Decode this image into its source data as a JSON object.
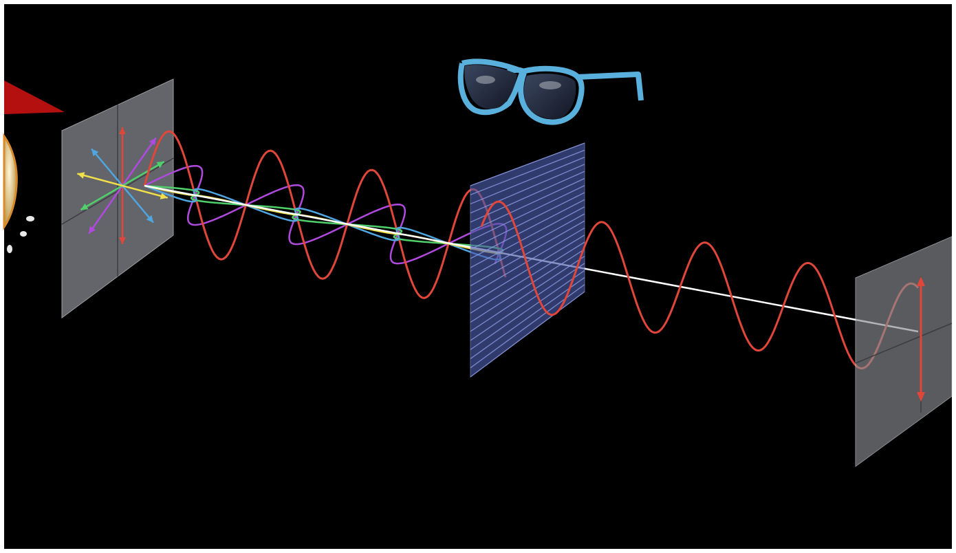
{
  "colors": {
    "background": "#000000",
    "frame": "#ffffff",
    "panel_fill": "#8a8d93",
    "panel_edge": "#d8dbe0",
    "polarizer_fill": "#4a5aa6",
    "polarizer_line": "#8a9ae0",
    "wave_red": "#e0473a",
    "wave_purple": "#b04adf",
    "wave_green": "#4fd06a",
    "wave_yellow": "#f1e04a",
    "wave_cyan": "#4fa6e0",
    "beam": "#ffffff",
    "glasses_frame": "#5ab0dc",
    "glasses_lens": "#1e2432",
    "lamp_shade": "#b51010",
    "bulb": "#e3c98f"
  },
  "icons": {
    "lamp": "lamp-icon",
    "bulb": "light-bulb-icon",
    "glasses": "sunglasses-icon"
  },
  "elements": {
    "source_panel": "unpolarized-source-panel",
    "polarizer": "polarizing-filter",
    "screen": "output-screen",
    "beam": "light-ray"
  }
}
